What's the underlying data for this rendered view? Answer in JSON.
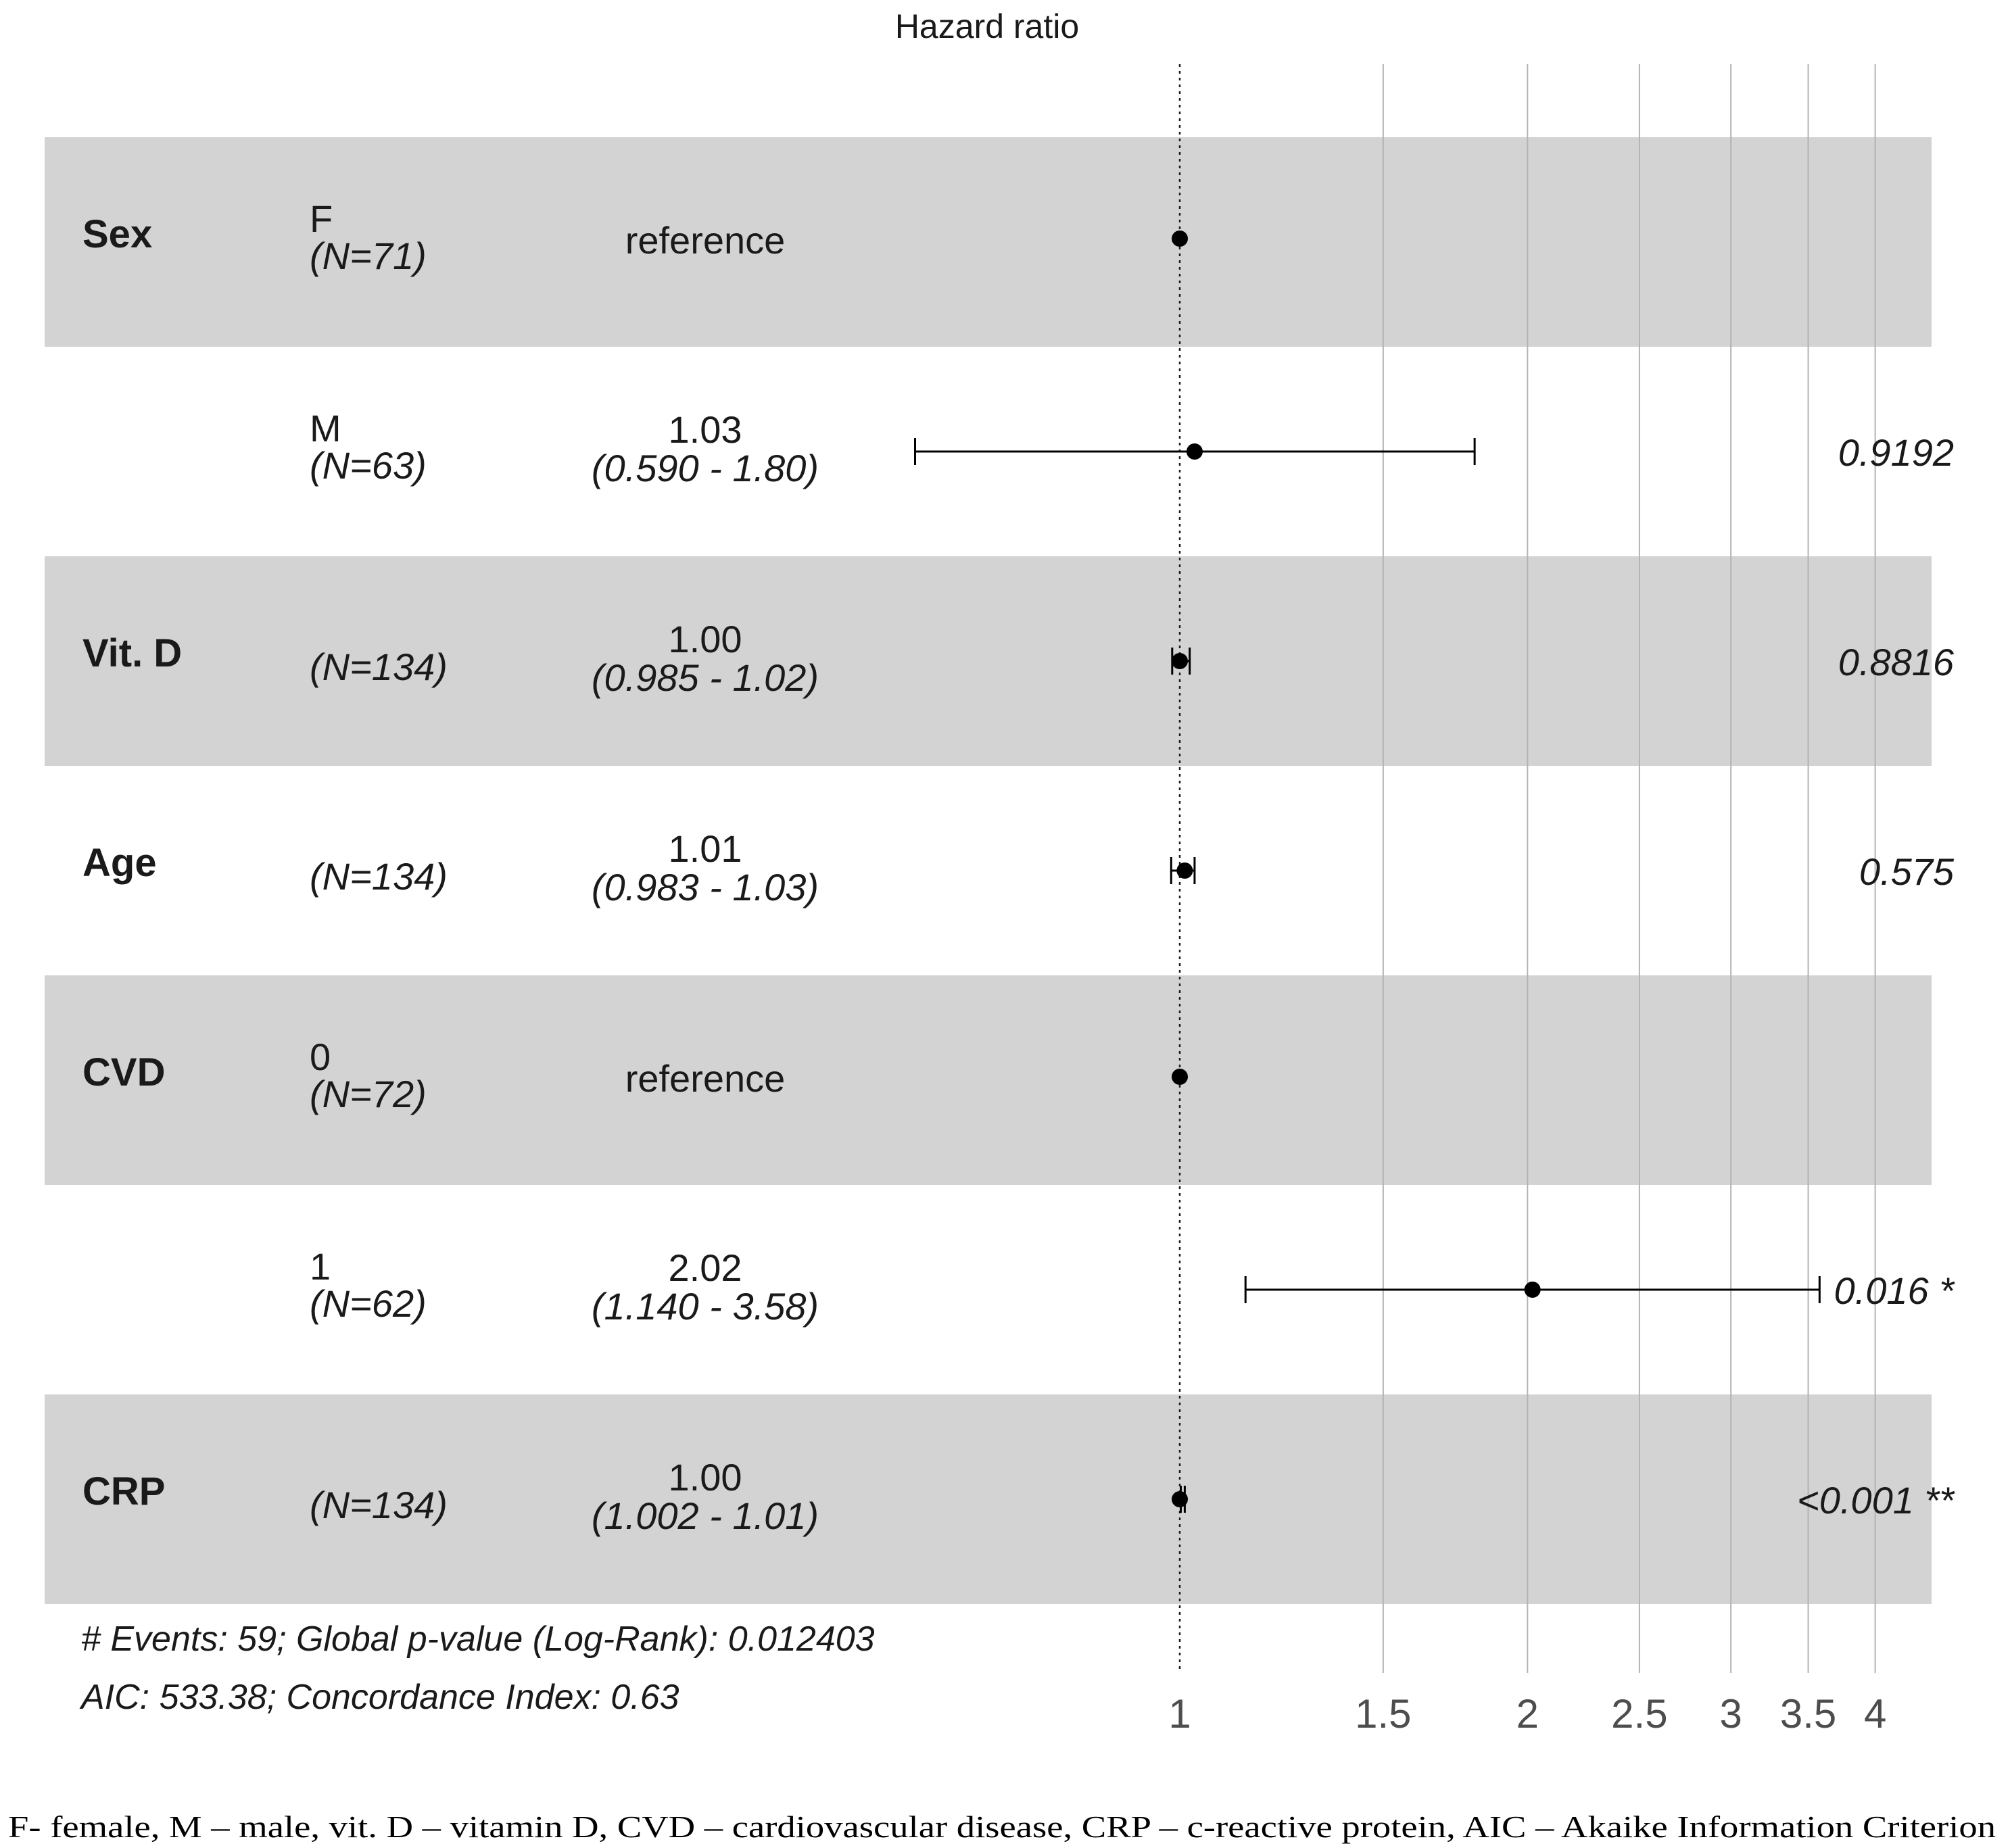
{
  "chart_data": {
    "type": "forest",
    "title": "Hazard ratio",
    "x_scale": "log",
    "xlim": [
      0.5,
      4.4
    ],
    "reference_value": 1,
    "x_ticks": [
      1,
      1.5,
      2,
      2.5,
      3,
      3.5,
      4
    ],
    "x_tick_labels": [
      "1",
      "1.5",
      "2",
      "2.5",
      "3",
      "3.5",
      "4"
    ],
    "rows": [
      {
        "variable": "Sex",
        "level": "F",
        "n": "(N=71)",
        "estimate_label": "reference",
        "ci_label": "",
        "hr": 1,
        "lower": null,
        "upper": null,
        "p": "",
        "shaded": true
      },
      {
        "variable": "",
        "level": "M",
        "n": "(N=63)",
        "estimate_label": "1.03",
        "ci_label": "(0.590 - 1.80)",
        "hr": 1.03,
        "lower": 0.59,
        "upper": 1.8,
        "p": "0.9192",
        "shaded": false
      },
      {
        "variable": "Vit. D",
        "level": "",
        "n": "(N=134)",
        "estimate_label": "1.00",
        "ci_label": "(0.985 - 1.02)",
        "hr": 1.0,
        "lower": 0.985,
        "upper": 1.02,
        "p": "0.8816",
        "shaded": true
      },
      {
        "variable": "Age",
        "level": "",
        "n": "(N=134)",
        "estimate_label": "1.01",
        "ci_label": "(0.983 - 1.03)",
        "hr": 1.01,
        "lower": 0.983,
        "upper": 1.03,
        "p": "0.575",
        "shaded": false
      },
      {
        "variable": "CVD",
        "level": "0",
        "n": "(N=72)",
        "estimate_label": "reference",
        "ci_label": "",
        "hr": 1,
        "lower": null,
        "upper": null,
        "p": "",
        "shaded": true
      },
      {
        "variable": "",
        "level": "1",
        "n": "(N=62)",
        "estimate_label": "2.02",
        "ci_label": "(1.140 - 3.58)",
        "hr": 2.02,
        "lower": 1.14,
        "upper": 3.58,
        "p": "0.016 *",
        "shaded": false
      },
      {
        "variable": "CRP",
        "level": "",
        "n": "(N=134)",
        "estimate_label": "1.00",
        "ci_label": "(1.002 - 1.01)",
        "hr": 1.0,
        "lower": 1.002,
        "upper": 1.01,
        "p": "<0.001 **",
        "shaded": true
      }
    ],
    "footer_line1": "# Events: 59; Global p-value (Log-Rank): 0.012403",
    "footer_line2": "AIC: 533.38; Concordance Index: 0.63",
    "colors": {
      "band": "#d3d3d3",
      "gridline": "#b3b3b3",
      "text": "#1a1a1a"
    }
  },
  "caption": "F- female, M – male, vit. D – vitamin D, CVD – cardiovascular disease, CRP – c-reactive protein, AIC – Akaike Information Criterion"
}
